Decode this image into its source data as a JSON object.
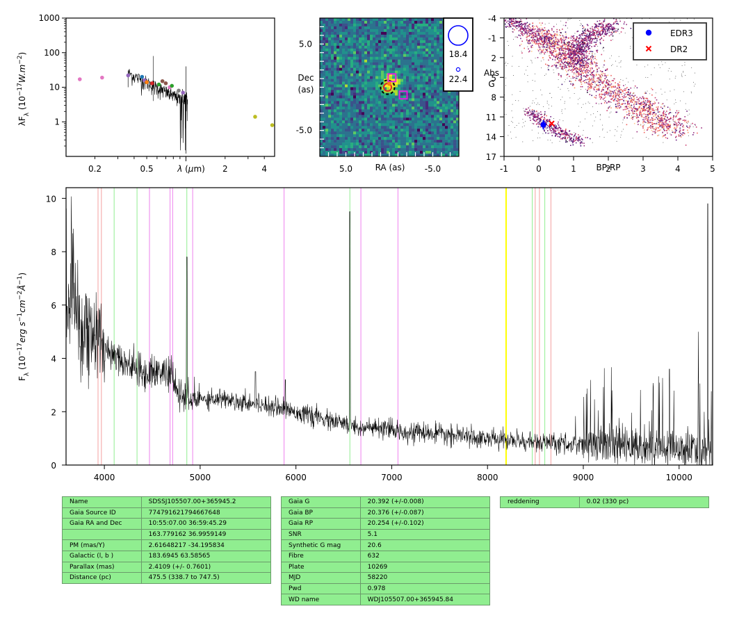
{
  "charts": {
    "sed": {
      "ylabel": "λF_λ (10^{-17} W.m^{-2})",
      "xlabel": "λ (μm)",
      "yticks": [
        "1000",
        "100",
        "10",
        "1"
      ],
      "xticks": [
        "0.2",
        "0.5",
        "2",
        "4"
      ]
    },
    "img": {
      "xlabel": "RA (as)",
      "ylabel_1": "Dec",
      "ylabel_2": "(as)",
      "xticks": [
        "5.0",
        "-5.0"
      ],
      "yticks": [
        "5.0",
        "-5.0"
      ],
      "legend": [
        "18.4",
        "22.4"
      ]
    },
    "hrd": {
      "ylabel_1": "Abs",
      "ylabel_2": "G",
      "xlabel": "BP-RP",
      "yticks": [
        "-4",
        "-1",
        "2",
        "5",
        "8",
        "11",
        "14",
        "17"
      ],
      "xticks": [
        "-1",
        "0",
        "1",
        "2",
        "3",
        "4",
        "5"
      ],
      "legend": [
        "EDR3",
        "DR2"
      ]
    },
    "spec": {
      "ylabel": "F_λ (10^{-17} erg s^{-1} cm^{-2} Å^{-1})",
      "yticks": [
        "0",
        "2",
        "4",
        "6",
        "8",
        "10"
      ],
      "xticks": [
        "4000",
        "5000",
        "6000",
        "7000",
        "8000",
        "9000",
        "10000"
      ]
    }
  },
  "chart_data": [
    {
      "type": "scatter",
      "panel": "SED",
      "xscale": "log",
      "yscale": "log",
      "xlim": [
        0.12,
        4.8
      ],
      "ylim": [
        0.1,
        1000
      ],
      "points": [
        {
          "x": 0.153,
          "y": 17,
          "color": "#e377c2"
        },
        {
          "x": 0.227,
          "y": 19,
          "color": "#e377c2"
        },
        {
          "x": 0.36,
          "y": 22,
          "color": "#9467bd"
        },
        {
          "x": 0.46,
          "y": 20,
          "color": "#1f77b4"
        },
        {
          "x": 0.48,
          "y": 16,
          "color": "#9467bd"
        },
        {
          "x": 0.5,
          "y": 14,
          "color": "#ff7f0e"
        },
        {
          "x": 0.55,
          "y": 13,
          "color": "#d62728"
        },
        {
          "x": 0.62,
          "y": 12,
          "color": "#2ca02c"
        },
        {
          "x": 0.66,
          "y": 15,
          "color": "#8c564b"
        },
        {
          "x": 0.7,
          "y": 13,
          "color": "#8c564b"
        },
        {
          "x": 0.75,
          "y": 10,
          "color": "#e377c2"
        },
        {
          "x": 0.78,
          "y": 11,
          "color": "#2ca02c"
        },
        {
          "x": 0.88,
          "y": 8,
          "color": "#7f7f7f"
        },
        {
          "x": 0.95,
          "y": 7,
          "color": "#9467bd"
        },
        {
          "x": 3.4,
          "y": 1.4,
          "color": "#bcbd22"
        },
        {
          "x": 4.6,
          "y": 0.8,
          "color": "#bcbd22"
        }
      ]
    },
    {
      "type": "heatmap",
      "panel": "Image cutout",
      "xlabel": "RA (as)",
      "ylabel": "Dec (as)",
      "xlim": [
        8,
        -8
      ],
      "ylim": [
        -8,
        8
      ],
      "markers": [
        {
          "shape": "circle-dashed",
          "x": 0.2,
          "y": 0.0,
          "color": "#000000"
        },
        {
          "shape": "circle",
          "x": 0.2,
          "y": 0.0,
          "color": "#d62728"
        },
        {
          "shape": "square",
          "x": -0.3,
          "y": 1.1,
          "color": "#e020e0"
        },
        {
          "shape": "square",
          "x": -1.6,
          "y": -0.9,
          "color": "#e020e0"
        }
      ],
      "legend": [
        {
          "label": "18.4",
          "marker": "large blue circle"
        },
        {
          "label": "22.4",
          "marker": "small blue circle"
        }
      ]
    },
    {
      "type": "scatter",
      "panel": "HR diagram",
      "xlabel": "BP-RP",
      "ylabel": "Abs G",
      "xlim": [
        -1,
        5
      ],
      "ylim": [
        17,
        -4
      ],
      "series": [
        {
          "name": "EDR3",
          "color": "#0000ff",
          "marker": "circle",
          "x": 0.13,
          "y": 12.2,
          "yerr": 0.7
        },
        {
          "name": "DR2",
          "color": "#ff0000",
          "marker": "x",
          "x": 0.37,
          "y": 12.0
        }
      ]
    },
    {
      "type": "line",
      "panel": "Spectrum",
      "ylabel": "F_λ (10^{-17} erg s^{-1} cm^{-2} Å^{-1})",
      "xlim": [
        3600,
        10350
      ],
      "ylim": [
        0,
        10.4
      ],
      "continuum": [
        [
          3600,
          6.2
        ],
        [
          3700,
          5.5
        ],
        [
          3800,
          5.0
        ],
        [
          3900,
          4.8
        ],
        [
          4000,
          4.4
        ],
        [
          4100,
          4.2
        ],
        [
          4200,
          3.9
        ],
        [
          4300,
          3.7
        ],
        [
          4400,
          3.4
        ],
        [
          4500,
          3.5
        ],
        [
          4600,
          3.5
        ],
        [
          4700,
          3.4
        ],
        [
          4750,
          2.8
        ],
        [
          4800,
          2.6
        ],
        [
          4900,
          2.4
        ],
        [
          5000,
          2.5
        ],
        [
          5200,
          2.5
        ],
        [
          5400,
          2.4
        ],
        [
          5600,
          2.3
        ],
        [
          5800,
          2.2
        ],
        [
          6000,
          2.0
        ],
        [
          6300,
          1.7
        ],
        [
          6600,
          1.45
        ],
        [
          7000,
          1.3
        ],
        [
          7500,
          1.15
        ],
        [
          8000,
          1.0
        ],
        [
          8500,
          0.85
        ],
        [
          9000,
          0.75
        ],
        [
          9500,
          0.7
        ],
        [
          10000,
          0.6
        ],
        [
          10350,
          0.5
        ]
      ],
      "emission_lines": [
        [
          4861,
          7.8
        ],
        [
          5577,
          3.5
        ],
        [
          5890,
          3.2
        ],
        [
          6563,
          9.5
        ],
        [
          9300,
          2.8
        ],
        [
          9900,
          3.6
        ],
        [
          10200,
          5.0
        ],
        [
          10300,
          9.8
        ]
      ],
      "vlines": [
        {
          "x": 3934,
          "color": "#f4a0a0"
        },
        {
          "x": 3969,
          "color": "#f4a0a0"
        },
        {
          "x": 4102,
          "color": "#90ee90"
        },
        {
          "x": 4341,
          "color": "#90ee90"
        },
        {
          "x": 4471,
          "color": "#ee82ee"
        },
        {
          "x": 4686,
          "color": "#ee82ee"
        },
        {
          "x": 4713,
          "color": "#ee82ee"
        },
        {
          "x": 4861,
          "color": "#90ee90"
        },
        {
          "x": 4922,
          "color": "#ee82ee"
        },
        {
          "x": 5876,
          "color": "#ee82ee"
        },
        {
          "x": 6563,
          "color": "#90ee90"
        },
        {
          "x": 6678,
          "color": "#ee82ee"
        },
        {
          "x": 7065,
          "color": "#ee82ee"
        },
        {
          "x": 8194,
          "color": "#ffff00"
        },
        {
          "x": 8467,
          "color": "#90ee90"
        },
        {
          "x": 8498,
          "color": "#f4a0a0"
        },
        {
          "x": 8542,
          "color": "#f4a0a0"
        },
        {
          "x": 8598,
          "color": "#90ee90"
        },
        {
          "x": 8662,
          "color": "#f4a0a0"
        }
      ]
    }
  ],
  "tables": {
    "t1": [
      [
        "Name",
        "SDSSJ105507.00+365945.2"
      ],
      [
        "Gaia Source ID",
        "774791621794667648"
      ],
      [
        "Gaia RA and Dec",
        "10:55:07.00    36:59:45.29"
      ],
      [
        "",
        "163.779162    36.9959149"
      ],
      [
        "PM (mas/Y)",
        "2.61648217    -34.195834"
      ],
      [
        "Galactic (l, b )",
        "183.6945    63.58565"
      ],
      [
        "Parallax (mas)",
        "2.4109 (+/- 0.7601)"
      ],
      [
        "Distance (pc)",
        "475.5 (338.7 to 747.5)"
      ]
    ],
    "t2": [
      [
        "Gaia G",
        "20.392 (+/-0.008)"
      ],
      [
        "Gaia BP",
        "20.376 (+/-0.087)"
      ],
      [
        "Gaia RP",
        "20.254 (+/-0.102)"
      ],
      [
        "SNR",
        "5.1"
      ],
      [
        "Synthetic G mag",
        "20.6"
      ],
      [
        "Fibre",
        "632"
      ],
      [
        "Plate",
        "10269"
      ],
      [
        "MJD",
        "58220"
      ],
      [
        "Pwd",
        "0.978"
      ],
      [
        "WD name",
        "WDJ105507.00+365945.84"
      ]
    ],
    "t3": [
      [
        "reddening",
        "0.02 (330 pc)"
      ]
    ]
  }
}
